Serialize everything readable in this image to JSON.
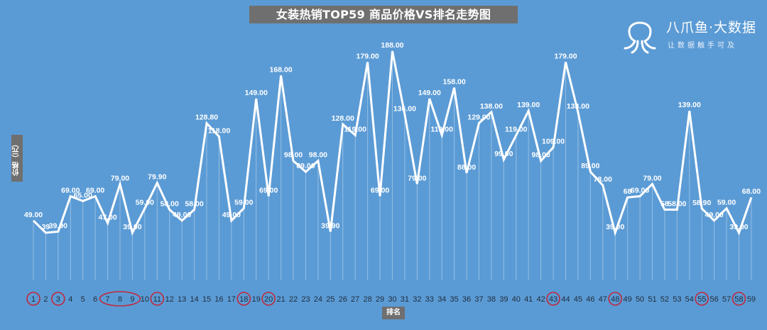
{
  "chart_data": {
    "type": "line",
    "title": "女装热销TOP59 商品价格VS排名走势图",
    "xlabel": "排名",
    "ylabel": "价格（元）",
    "ylim": [
      0,
      200
    ],
    "grid": false,
    "x": [
      1,
      2,
      3,
      4,
      5,
      6,
      7,
      8,
      9,
      10,
      11,
      12,
      13,
      14,
      15,
      16,
      17,
      18,
      19,
      20,
      21,
      22,
      23,
      24,
      25,
      26,
      27,
      28,
      29,
      30,
      31,
      32,
      33,
      34,
      35,
      36,
      37,
      38,
      39,
      40,
      41,
      42,
      43,
      44,
      45,
      46,
      47,
      48,
      49,
      50,
      51,
      52,
      53,
      54,
      55,
      56,
      57,
      58,
      59
    ],
    "values": [
      49.0,
      39,
      39.9,
      69.0,
      65.0,
      69.0,
      47.0,
      79.0,
      39.0,
      59.0,
      79.9,
      58.0,
      49.0,
      58.0,
      128.8,
      118.0,
      49.0,
      59.0,
      149.0,
      69.0,
      168.0,
      98.0,
      89.0,
      98.0,
      39.9,
      128.0,
      119.0,
      179.0,
      69.0,
      188.0,
      136.0,
      79.0,
      149.0,
      119.0,
      158.0,
      88.0,
      129.0,
      138.0,
      99.0,
      119.0,
      139.0,
      98.0,
      109.0,
      179.0,
      138.0,
      89.0,
      78.0,
      39.0,
      68,
      69.0,
      79.0,
      58,
      58.0,
      139.0,
      58.9,
      49.0,
      59.0,
      39.0,
      68.0
    ],
    "value_labels": [
      "49.00",
      "39",
      "39.90",
      "69.00",
      "65.00",
      "69.00",
      "47.00",
      "79.00",
      "39.00",
      "59.00",
      "79.90",
      "58.00",
      "49.00",
      "58.00",
      "128.80",
      "118.00",
      "49.00",
      "59.00",
      "149.00",
      "69.00",
      "168.00",
      "98.00",
      "89.00",
      "98.00",
      "39.90",
      "128.00",
      "119.00",
      "179.00",
      "69.00",
      "188.00",
      "136.00",
      "79.00",
      "149.00",
      "119.00",
      "158.00",
      "88.00",
      "129.00",
      "138.00",
      "99.00",
      "119.00",
      "139.00",
      "98.00",
      "109.00",
      "179.00",
      "138.00",
      "89.00",
      "78.00",
      "39.00",
      "68",
      "69.00",
      "79.00",
      "58",
      "58.00",
      "139.00",
      "58.90",
      "49.00",
      "59.00",
      "39.00",
      "68.00"
    ],
    "highlighted_ranks": [
      1,
      3,
      11,
      18,
      20,
      43,
      48,
      55,
      58
    ],
    "highlighted_range": [
      7,
      9
    ],
    "line_color": "#ffffff",
    "highlight_color": "#c0283a"
  },
  "brand": {
    "name": "八爪鱼·大数据",
    "tagline": "让数据触手可及",
    "icon": "octopus-icon"
  },
  "colors": {
    "background": "#5b9bd5",
    "label_bg": "#6f6f6f"
  }
}
